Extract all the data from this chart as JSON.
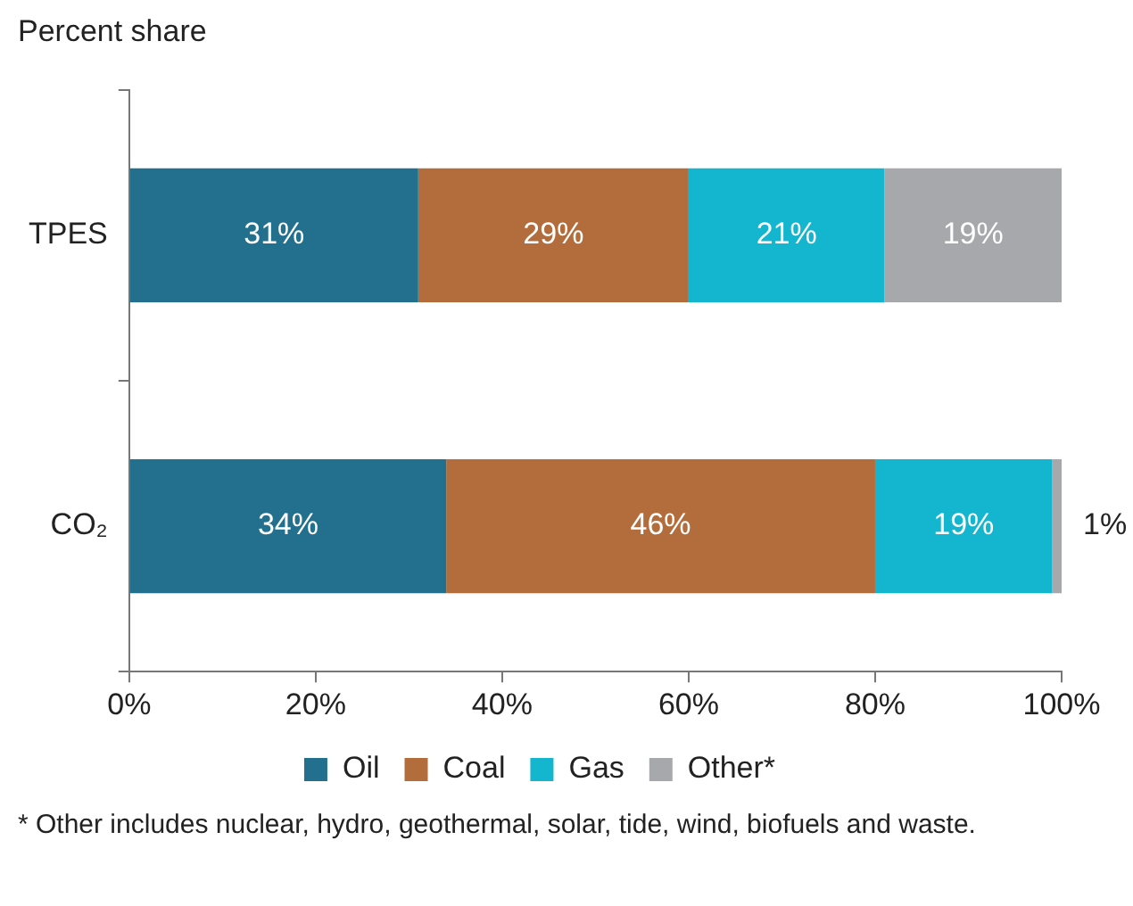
{
  "chart_data": {
    "type": "bar",
    "orientation": "horizontal",
    "stacked": true,
    "title": "Percent share",
    "categories": [
      "TPES",
      "CO₂"
    ],
    "series": [
      {
        "name": "Oil",
        "color": "#23708e",
        "values": [
          31,
          34
        ],
        "value_labels": [
          "31%",
          "34%"
        ]
      },
      {
        "name": "Coal",
        "color": "#b36d3c",
        "values": [
          29,
          46
        ],
        "value_labels": [
          "29%",
          "46%"
        ]
      },
      {
        "name": "Gas",
        "color": "#14b6cf",
        "values": [
          21,
          19
        ],
        "value_labels": [
          "21%",
          "19%"
        ]
      },
      {
        "name": "Other*",
        "color": "#a6a8ab",
        "values": [
          19,
          1
        ],
        "value_labels": [
          "19%",
          "1%"
        ]
      }
    ],
    "xlim": [
      0,
      100
    ],
    "xticks": [
      {
        "value": 0,
        "label": "0%"
      },
      {
        "value": 20,
        "label": "20%"
      },
      {
        "value": 40,
        "label": "40%"
      },
      {
        "value": 60,
        "label": "60%"
      },
      {
        "value": 80,
        "label": "80%"
      },
      {
        "value": 100,
        "label": "100%"
      }
    ],
    "grid": false,
    "legend": "bottom",
    "annotations": [
      "* Other includes nuclear, hydro, geothermal, solar, tide, wind, biofuels and waste."
    ]
  }
}
